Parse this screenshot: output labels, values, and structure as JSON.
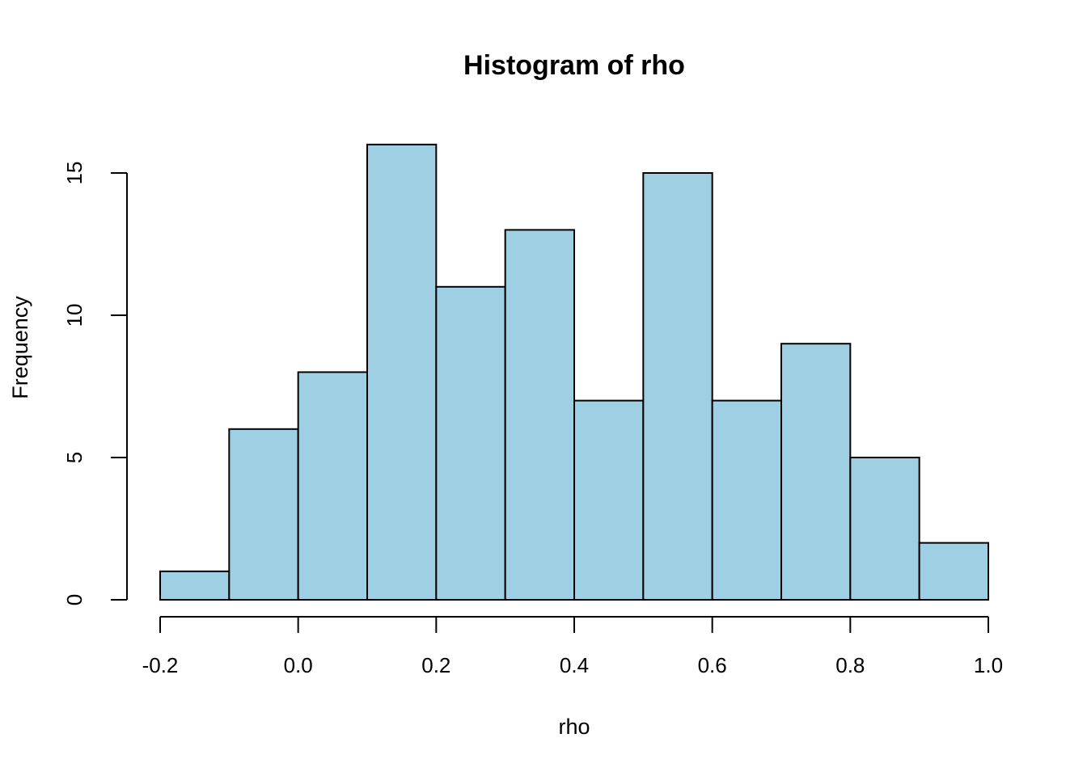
{
  "chart_data": {
    "type": "bar",
    "subtype": "histogram",
    "title": "Histogram of rho",
    "xlabel": "rho",
    "ylabel": "Frequency",
    "bin_edges": [
      -0.2,
      -0.1,
      0.0,
      0.1,
      0.2,
      0.3,
      0.4,
      0.5,
      0.6,
      0.7,
      0.8,
      0.9,
      1.0
    ],
    "counts": [
      1,
      6,
      8,
      16,
      11,
      13,
      7,
      15,
      7,
      9,
      5,
      2
    ],
    "xlim": [
      -0.2,
      1.0
    ],
    "ylim": [
      0,
      16
    ],
    "x_ticks": [
      {
        "value": -0.2,
        "label": "-0.2"
      },
      {
        "value": 0.0,
        "label": "0.0"
      },
      {
        "value": 0.2,
        "label": "0.2"
      },
      {
        "value": 0.4,
        "label": "0.4"
      },
      {
        "value": 0.6,
        "label": "0.6"
      },
      {
        "value": 0.8,
        "label": "0.8"
      },
      {
        "value": 1.0,
        "label": "1.0"
      }
    ],
    "y_ticks": [
      {
        "value": 0,
        "label": "0"
      },
      {
        "value": 5,
        "label": "5"
      },
      {
        "value": 10,
        "label": "10"
      },
      {
        "value": 15,
        "label": "15"
      }
    ],
    "grid": false,
    "legend": "none",
    "colors": {
      "bar_fill": "#9FCFE2",
      "bar_stroke": "#000000",
      "axis": "#000000",
      "text": "#000000",
      "background": "#FFFFFF"
    }
  }
}
